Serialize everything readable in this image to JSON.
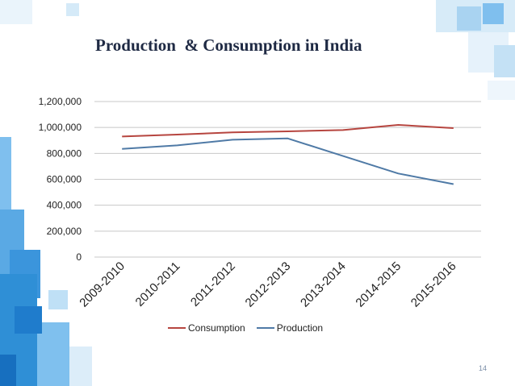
{
  "slide": {
    "title": "Production  & Consumption in India",
    "page_number": "14"
  },
  "colors": {
    "consumption": "#b6453f",
    "production": "#4f7aa6",
    "grid": "#c8c8c8",
    "deco_dark": "#2f8fd6",
    "deco_mid": "#5fb0e8",
    "deco_light": "#cfe6f7"
  },
  "chart_data": {
    "type": "line",
    "title": "Production  & Consumption in India",
    "categories": [
      "2009-2010",
      "2010-2011",
      "2011-2012",
      "2012-2013",
      "2013-2014",
      "2014-2015",
      "2015-2016"
    ],
    "series": [
      {
        "name": "Consumption",
        "values": [
          930000,
          945000,
          962000,
          970000,
          980000,
          1020000,
          995000
        ]
      },
      {
        "name": "Production",
        "values": [
          835000,
          862000,
          905000,
          915000,
          780000,
          645000,
          563000
        ]
      }
    ],
    "ylim": [
      0,
      1200000
    ],
    "yticks": [
      0,
      200000,
      400000,
      600000,
      800000,
      1000000,
      1200000
    ],
    "ytick_labels": [
      "0",
      "200,000",
      "400,000",
      "600,000",
      "800,000",
      "1,000,000",
      "1,200,000"
    ],
    "grid": true,
    "legend": "bottom",
    "xlabel": "",
    "ylabel": ""
  }
}
